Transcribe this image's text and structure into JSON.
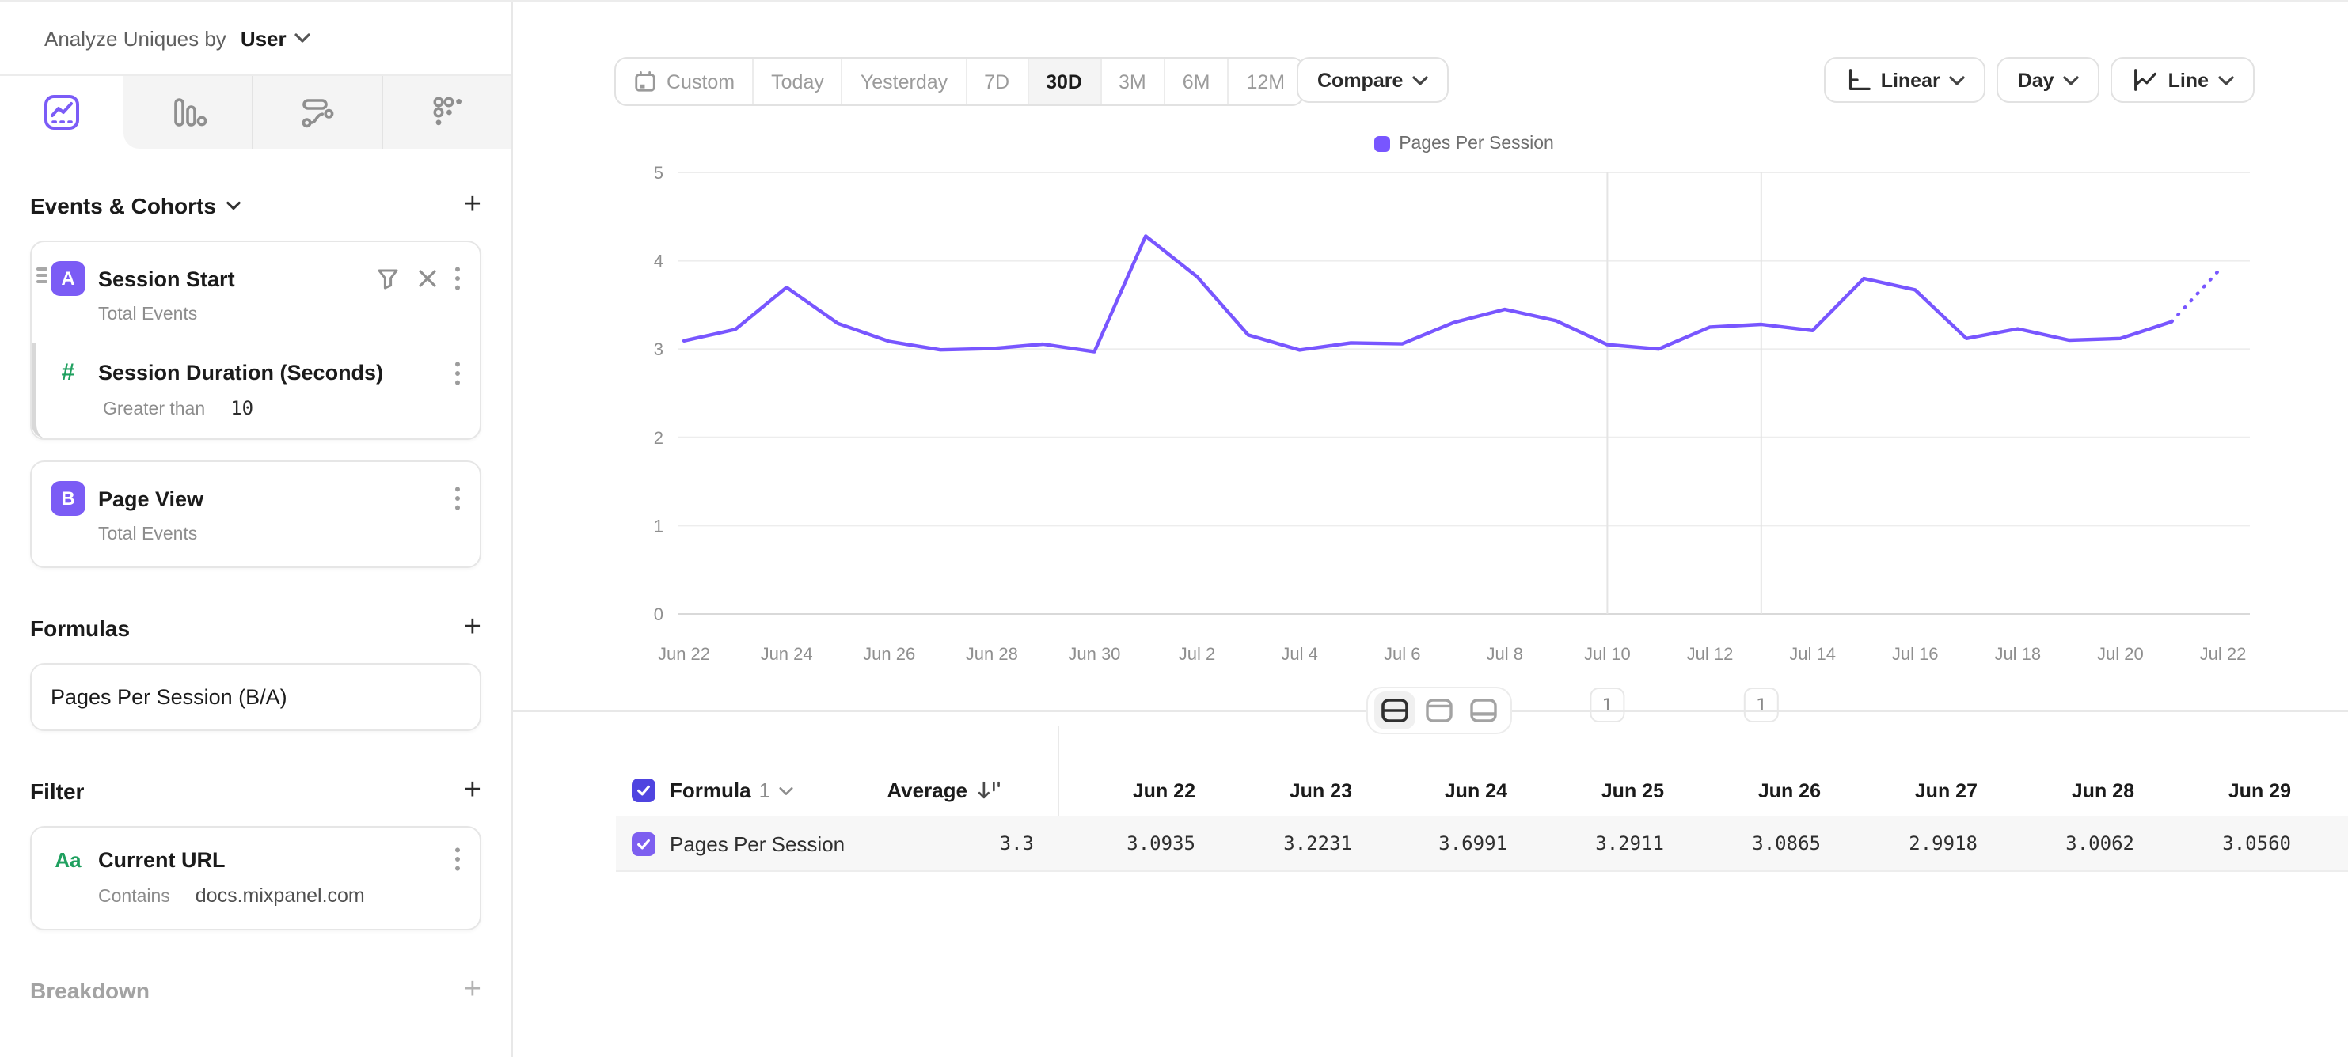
{
  "colors": {
    "accent": "#7856FF",
    "accent_dark": "#4F44E0",
    "green": "#1FA05F",
    "grid": "#ededed",
    "axis_text": "#8f8f8f"
  },
  "sidebar": {
    "analyze_by_label": "Analyze Uniques by",
    "analyze_by_value": "User",
    "tabs": [
      "insights",
      "funnels",
      "flows",
      "retention"
    ],
    "active_tab": "insights",
    "events_section": {
      "title": "Events & Cohorts",
      "cards": [
        {
          "letter": "A",
          "title": "Session Start",
          "measure": "Total Events",
          "property_filter": {
            "icon": "number",
            "title": "Session Duration (Seconds)",
            "operator": "Greater than",
            "value": "10"
          }
        },
        {
          "letter": "B",
          "title": "Page View",
          "measure": "Total Events"
        }
      ]
    },
    "formulas_section": {
      "title": "Formulas",
      "items": [
        {
          "title": "Pages Per Session (B/A)"
        }
      ]
    },
    "filter_section": {
      "title": "Filter",
      "items": [
        {
          "icon": "text",
          "title": "Current URL",
          "operator": "Contains",
          "value": "docs.mixpanel.com"
        }
      ]
    },
    "breakdown_section": {
      "title": "Breakdown"
    }
  },
  "toolbar": {
    "date_presets": [
      "Custom",
      "Today",
      "Yesterday",
      "7D",
      "30D",
      "3M",
      "6M",
      "12M"
    ],
    "active_preset": "30D",
    "compare_label": "Compare",
    "y_scale": "Linear",
    "interval": "Day",
    "chart_style": "Line"
  },
  "chart_data": {
    "type": "line",
    "legend": [
      {
        "label": "Pages Per Session",
        "color": "#7856FF"
      }
    ],
    "x": [
      "Jun 22",
      "Jun 23",
      "Jun 24",
      "Jun 25",
      "Jun 26",
      "Jun 27",
      "Jun 28",
      "Jun 29",
      "Jun 30",
      "Jul 1",
      "Jul 2",
      "Jul 3",
      "Jul 4",
      "Jul 5",
      "Jul 6",
      "Jul 7",
      "Jul 8",
      "Jul 9",
      "Jul 10",
      "Jul 11",
      "Jul 12",
      "Jul 13",
      "Jul 14",
      "Jul 15",
      "Jul 16",
      "Jul 17",
      "Jul 18",
      "Jul 19",
      "Jul 20",
      "Jul 21",
      "Jul 22"
    ],
    "x_tick_step": 2,
    "ylim": [
      0,
      5
    ],
    "yticks": [
      0,
      1,
      2,
      3,
      4,
      5
    ],
    "grid": "horizontal",
    "series": [
      {
        "name": "Pages Per Session",
        "color": "#7856FF",
        "values": [
          3.0935,
          3.2231,
          3.6991,
          3.2911,
          3.0865,
          2.9918,
          3.0062,
          3.056,
          2.97,
          4.28,
          3.82,
          3.16,
          2.99,
          3.07,
          3.06,
          3.3,
          3.45,
          3.32,
          3.05,
          3.0,
          3.25,
          3.28,
          3.21,
          3.8,
          3.67,
          3.12,
          3.23,
          3.1,
          3.12,
          3.31,
          3.94
        ],
        "dashed_from_index": 29
      }
    ],
    "annotations": [
      {
        "x": "Jul 10",
        "label": "1"
      },
      {
        "x": "Jul 13",
        "label": "1"
      }
    ]
  },
  "layout_toggle": {
    "options": [
      "chart-and-table",
      "chart-only",
      "table-only"
    ],
    "active": "chart-and-table"
  },
  "table": {
    "group_label": "Formula",
    "group_index": "1",
    "average_label": "Average",
    "date_columns": [
      "Jun 22",
      "Jun 23",
      "Jun 24",
      "Jun 25",
      "Jun 26",
      "Jun 27",
      "Jun 28",
      "Jun 29"
    ],
    "rows": [
      {
        "label": "Pages Per Session",
        "checked": true,
        "average": "3.3",
        "values": [
          "3.0935",
          "3.2231",
          "3.6991",
          "3.2911",
          "3.0865",
          "2.9918",
          "3.0062",
          "3.0560"
        ]
      }
    ]
  }
}
